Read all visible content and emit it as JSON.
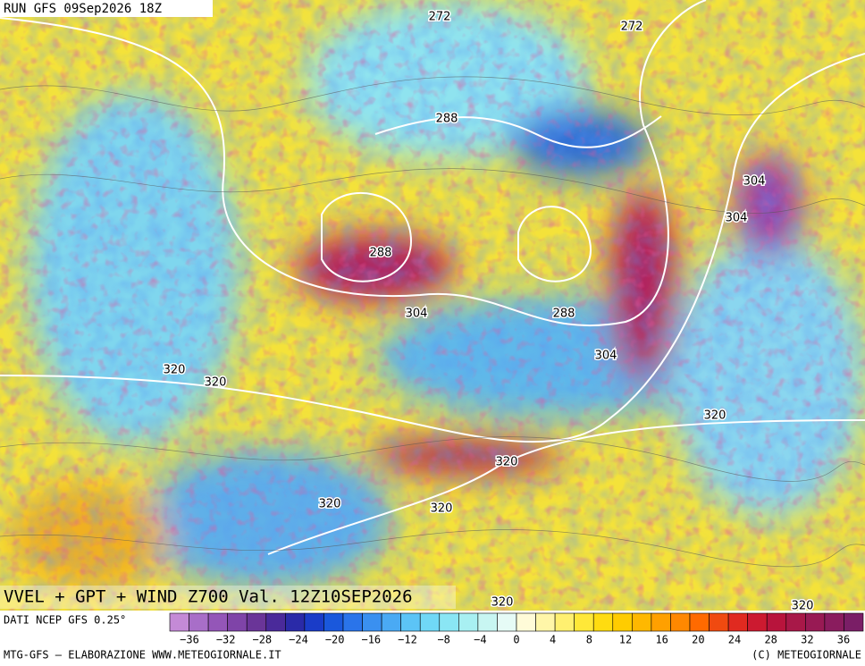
{
  "header": {
    "run": "RUN GFS 09Sep2026 18Z"
  },
  "map": {
    "title": "VVEL + GPT + WIND Z700 Val. 12Z10SEP2026",
    "contour_labels": [
      "272",
      "272",
      "288",
      "288",
      "288",
      "304",
      "304",
      "304",
      "304",
      "320",
      "320",
      "320",
      "320",
      "320",
      "320",
      "320",
      "320"
    ]
  },
  "legend": {
    "source": "DATI NCEP GFS 0.25°",
    "ticks": [
      "−36",
      "−32",
      "−28",
      "−24",
      "−20",
      "−16",
      "−12",
      "−8",
      "−4",
      "0",
      "4",
      "8",
      "12",
      "16",
      "20",
      "24",
      "28",
      "32",
      "36"
    ]
  },
  "footer": {
    "left": "MTG-GFS — ELABORAZIONE WWW.METEOGIORNALE.IT",
    "right": "(C) METEOGIORNALE"
  }
}
